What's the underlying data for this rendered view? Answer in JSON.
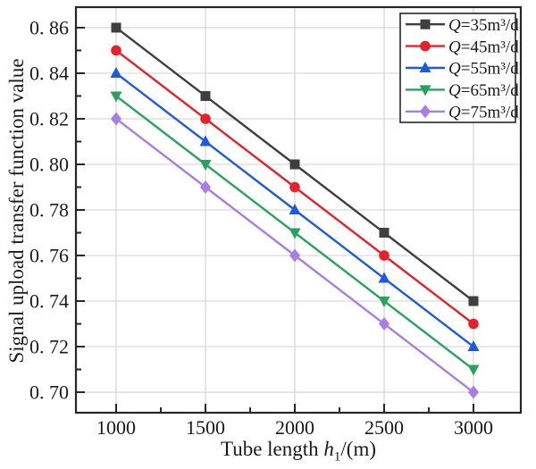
{
  "chart_data": {
    "type": "line",
    "title": "",
    "ylabel": "Signal upload transfer function value",
    "xlabel_parts": {
      "prefix": "Tube length ",
      "variable": "h",
      "subscript": "1",
      "suffix": "/(m)"
    },
    "x": [
      1000,
      1500,
      2000,
      2500,
      3000
    ],
    "series": [
      {
        "label": "Q=35m³/d",
        "marker": "square",
        "color": "#3f3f3f",
        "values": [
          0.86,
          0.83,
          0.8,
          0.77,
          0.74
        ]
      },
      {
        "label": "Q=45m³/d",
        "marker": "circle",
        "color": "#e4222a",
        "values": [
          0.85,
          0.82,
          0.79,
          0.76,
          0.73
        ]
      },
      {
        "label": "Q=55m³/d",
        "marker": "triangle-up",
        "color": "#1e5ae0",
        "values": [
          0.84,
          0.81,
          0.78,
          0.75,
          0.72
        ]
      },
      {
        "label": "Q=65m³/d",
        "marker": "triangle-down",
        "color": "#28a35d",
        "values": [
          0.83,
          0.8,
          0.77,
          0.74,
          0.71
        ]
      },
      {
        "label": "Q=75m³/d",
        "marker": "diamond",
        "color": "#a97de4",
        "values": [
          0.82,
          0.79,
          0.76,
          0.73,
          0.7
        ]
      }
    ],
    "xlim": [
      775,
      3265
    ],
    "ylim": [
      0.691,
      0.869
    ],
    "xticks": [
      1000,
      1500,
      2000,
      2500,
      3000
    ],
    "xtick_labels": [
      "1000",
      "1500",
      "2000",
      "2500",
      "3000"
    ],
    "xminor_ticks": [
      1250,
      1750,
      2250,
      2750
    ],
    "yticks": [
      0.7,
      0.72,
      0.74,
      0.76,
      0.78,
      0.8,
      0.82,
      0.84,
      0.86
    ],
    "ytick_labels": [
      "0. 70",
      "0. 72",
      "0. 74",
      "0. 76",
      "0. 78",
      "0. 80",
      "0. 82",
      "0. 84",
      "0. 86"
    ],
    "yminor_ticks": [
      0.71,
      0.73,
      0.75,
      0.77,
      0.79,
      0.81,
      0.83,
      0.85
    ],
    "grid": true,
    "legend_position": "top-right",
    "colors": {
      "grid": "#d9d9d9",
      "axis": "#262626",
      "text": "#1a1a1a",
      "background": "#ffffff"
    }
  }
}
